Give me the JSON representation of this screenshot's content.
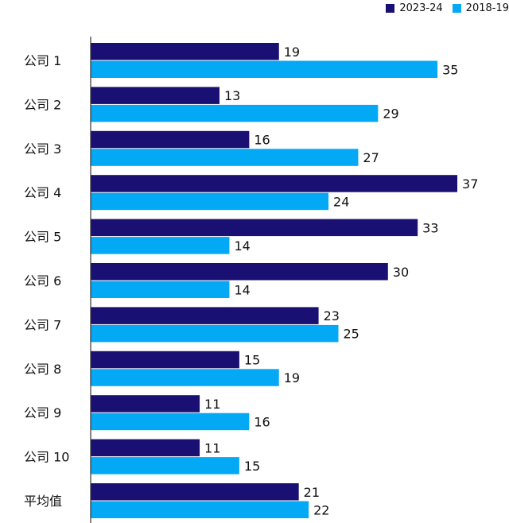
{
  "chart_data": {
    "type": "bar",
    "orientation": "horizontal",
    "categories": [
      "公司 1",
      "公司 2",
      "公司 3",
      "公司 4",
      "公司 5",
      "公司 6",
      "公司 7",
      "公司 8",
      "公司 9",
      "公司 10",
      "平均值"
    ],
    "series": [
      {
        "name": "2023-24",
        "color": "#1a0f73",
        "values": [
          19,
          13,
          16,
          37,
          33,
          30,
          23,
          15,
          11,
          11,
          21
        ]
      },
      {
        "name": "2018-19",
        "color": "#03a9f4",
        "values": [
          35,
          29,
          27,
          24,
          14,
          14,
          25,
          19,
          16,
          15,
          22
        ]
      }
    ],
    "xlim": [
      0,
      40
    ],
    "grid": false,
    "data_labels": true,
    "legend_position": "top-right"
  }
}
